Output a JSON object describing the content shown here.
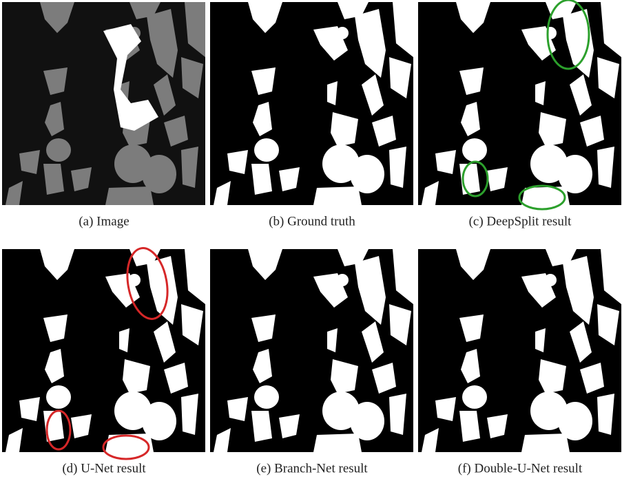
{
  "panels": [
    {
      "caption": "(a) Image"
    },
    {
      "caption": "(b) Ground truth"
    },
    {
      "caption": "(c) DeepSplit result"
    },
    {
      "caption": "(d) U-Net result"
    },
    {
      "caption": "(e) Branch-Net result"
    },
    {
      "caption": "(f) Double-U-Net result"
    }
  ]
}
